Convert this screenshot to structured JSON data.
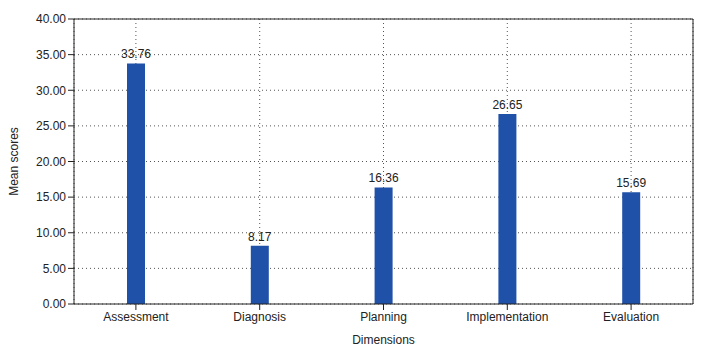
{
  "chart_data": {
    "type": "bar",
    "categories": [
      "Assessment",
      "Diagnosis",
      "Planning",
      "Implementation",
      "Evaluation"
    ],
    "values": [
      33.76,
      8.17,
      16.36,
      26.65,
      15.69
    ],
    "color": "#1f51a9",
    "x_label": "Dimensions",
    "y_label": "Mean scores",
    "ylim": [
      0,
      40
    ],
    "yticks": [
      {
        "value": 0,
        "label": "0.00"
      },
      {
        "value": 5,
        "label": "5.00"
      },
      {
        "value": 10,
        "label": "10.00"
      },
      {
        "value": 15,
        "label": "15.00"
      },
      {
        "value": 20,
        "label": "20.00"
      },
      {
        "value": 25,
        "label": "25.00"
      },
      {
        "value": 30,
        "label": "30.00"
      },
      {
        "value": 35,
        "label": "35.00"
      },
      {
        "value": 40,
        "label": "40.00"
      }
    ],
    "grid": true,
    "data_labels": true
  }
}
